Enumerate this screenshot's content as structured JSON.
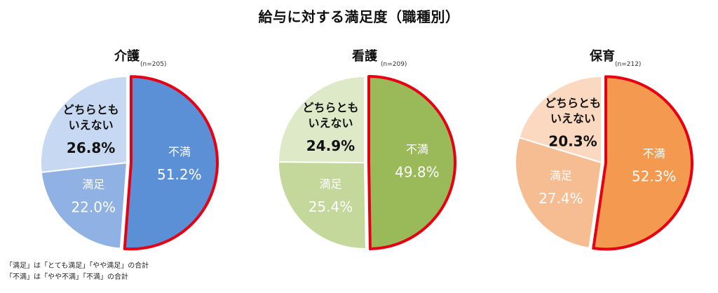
{
  "title": "給与に対する満足度（職種別）",
  "colors": {
    "outline_highlight": "#e60012",
    "separator": "#ffffff",
    "dark_label": "#111111",
    "light_label": "#ffffff"
  },
  "chart_data": [
    {
      "type": "pie",
      "title": "介護",
      "n_label": "(n=205)",
      "slices": [
        {
          "label": "不満",
          "value": 51.2,
          "display": "51.2%",
          "color": "#5b8fd6",
          "highlight": true
        },
        {
          "label": "満足",
          "value": 22.0,
          "display": "22.0%",
          "color": "#8fb1e3",
          "highlight": false
        },
        {
          "label": "どちらとも\nいえない",
          "value": 26.8,
          "display": "26.8%",
          "color": "#c7d8f2",
          "highlight": false
        }
      ]
    },
    {
      "type": "pie",
      "title": "看護",
      "n_label": "(n=209)",
      "slices": [
        {
          "label": "不満",
          "value": 49.8,
          "display": "49.8%",
          "color": "#9aba59",
          "highlight": true
        },
        {
          "label": "満足",
          "value": 25.4,
          "display": "25.4%",
          "color": "#c4d89c",
          "highlight": false
        },
        {
          "label": "どちらとも\nいえない",
          "value": 24.9,
          "display": "24.9%",
          "color": "#dde9c7",
          "highlight": false
        }
      ]
    },
    {
      "type": "pie",
      "title": "保育",
      "n_label": "(n=212)",
      "slices": [
        {
          "label": "不満",
          "value": 52.3,
          "display": "52.3%",
          "color": "#f39a50",
          "highlight": true
        },
        {
          "label": "満足",
          "value": 27.4,
          "display": "27.4%",
          "color": "#f6bd92",
          "highlight": false
        },
        {
          "label": "どちらとも\nいえない",
          "value": 20.3,
          "display": "20.3%",
          "color": "#fad9c0",
          "highlight": false
        }
      ]
    }
  ],
  "notes": [
    "「満足」は「とても満足」「やや満足」の合計",
    "「不満」は「やや不満」「不満」の合計"
  ]
}
